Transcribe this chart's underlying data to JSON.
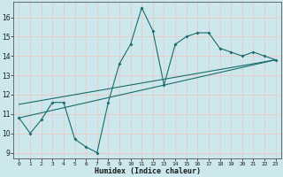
{
  "xlabel": "Humidex (Indice chaleur)",
  "ylabel": "",
  "bg_color": "#cce8ec",
  "grid_color": "#e8c8c8",
  "line_color": "#1a6b6b",
  "xlim": [
    -0.5,
    23.5
  ],
  "ylim": [
    8.7,
    16.8
  ],
  "x_ticks": [
    0,
    1,
    2,
    3,
    4,
    5,
    6,
    7,
    8,
    9,
    10,
    11,
    12,
    13,
    14,
    15,
    16,
    17,
    18,
    19,
    20,
    21,
    22,
    23
  ],
  "y_ticks": [
    9,
    10,
    11,
    12,
    13,
    14,
    15,
    16
  ],
  "curve1_x": [
    0,
    1,
    2,
    3,
    4,
    5,
    6,
    7,
    8,
    9,
    10,
    11,
    12,
    13,
    14,
    15,
    16,
    17,
    18,
    19,
    20,
    21,
    22,
    23
  ],
  "curve1_y": [
    10.8,
    10.0,
    10.7,
    11.6,
    11.6,
    9.7,
    9.3,
    9.0,
    11.6,
    13.6,
    14.6,
    16.5,
    15.3,
    12.5,
    14.6,
    15.0,
    15.2,
    15.2,
    14.4,
    14.2,
    14.0,
    14.2,
    14.0,
    13.8
  ],
  "curve2_x": [
    0,
    23
  ],
  "curve2_y": [
    10.8,
    13.8
  ],
  "curve3_x": [
    0,
    23
  ],
  "curve3_y": [
    11.5,
    13.8
  ]
}
